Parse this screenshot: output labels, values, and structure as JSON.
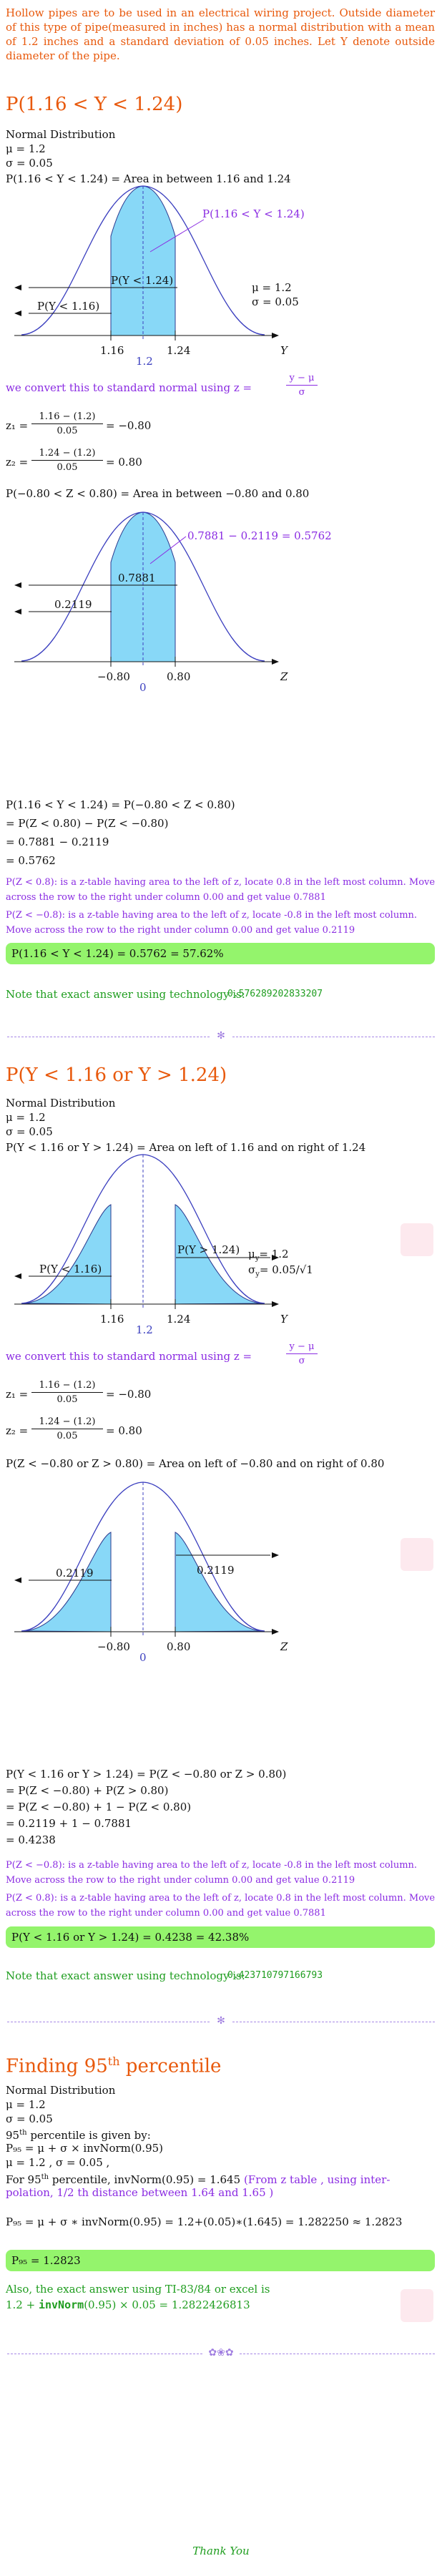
{
  "intro": "Hollow pipes are to be used in an electrical wiring project. Outside diameter of this type of pipe(measured in inches) has a normal distribution with a mean of 1.2 inches and a standard deviation of 0.05 inches. Let Y denote outside diameter of the pipe.",
  "s1": {
    "title": "P(1.16 < Y < 1.24)",
    "lines": [
      "Normal Distribution",
      "μ = 1.2",
      "σ = 0.05",
      "P(1.16 < Y < 1.24) = Area in between 1.16 and 1.24"
    ],
    "fig1": {
      "callout": "P(1.16 < Y < 1.24)",
      "inner": "P(Y < 1.24)",
      "left": "P(Y < 1.16)",
      "mu": "μ = 1.2",
      "sigma": "σ = 0.05",
      "t1": "1.16",
      "t2": "1.24",
      "tmid": "1.2",
      "axis": "Y"
    },
    "convert": "we convert this to standard normal using z =",
    "z_num": "y − μ",
    "z_den": "σ",
    "z1_label": "z₁ =",
    "z1_num": "1.16 − (1.2)",
    "z1_den": "0.05",
    "z1_val": "= −0.80",
    "z2_label": "z₂ =",
    "z2_num": "1.24 − (1.2)",
    "z2_den": "0.05",
    "z2_val": "= 0.80",
    "pz": "P(−0.80 < Z < 0.80) = Area in between −0.80 and 0.80",
    "fig2": {
      "callout": "0.7881 − 0.2119 = 0.5762",
      "inner": "0.7881",
      "left": "0.2119",
      "t1": "−0.80",
      "t2": "0.80",
      "tmid": "0",
      "axis": "Z"
    },
    "calc": [
      "P(1.16 < Y < 1.24) = P(−0.80 < Z < 0.80)",
      "= P(Z < 0.80) − P(Z < −0.80)",
      "= 0.7881 − 0.2119",
      "= 0.5762"
    ],
    "note1": "P(Z < 0.8): is a z-table having area to the left of z, locate 0.8 in the left most column. Move across the row to the right under column 0.00 and get value 0.7881",
    "note2": "P(Z < −0.8): is a z-table having area to the left of z, locate -0.8 in the left most column. Move across the row to the right under column 0.00 and get value 0.2119",
    "answer": "P(1.16 < Y < 1.24) = 0.5762 = 57.62%",
    "tech_label": "Note that exact answer using technology is:",
    "tech_value": "0.576289202833207"
  },
  "s2": {
    "title": "P(Y < 1.16 or Y > 1.24)",
    "lines": [
      "Normal Distribution",
      "μ = 1.2",
      "σ = 0.05",
      "P(Y < 1.16 or Y > 1.24) = Area on left of 1.16 and on right of 1.24"
    ],
    "fig1": {
      "left": "P(Y < 1.16)",
      "right": "P(Y > 1.24)",
      "mu": "μ",
      "mu_sub": "y",
      "mu_val": "= 1.2",
      "sigma": "σ",
      "sigma_sub": "y",
      "sigma_val": "= 0.05/√1",
      "t1": "1.16",
      "t2": "1.24",
      "tmid": "1.2",
      "axis": "Y"
    },
    "convert": "we convert this to standard normal using z =",
    "z_num": "y − μ",
    "z_den": "σ",
    "z1_label": "z₁ =",
    "z1_num": "1.16 − (1.2)",
    "z1_den": "0.05",
    "z1_val": "= −0.80",
    "z2_label": "z₂ =",
    "z2_num": "1.24 − (1.2)",
    "z2_den": "0.05",
    "z2_val": "= 0.80",
    "pz": "P(Z < −0.80 or Z > 0.80) = Area on left of −0.80 and on right of 0.80",
    "fig2": {
      "left": "0.2119",
      "right": "0.2119",
      "t1": "−0.80",
      "t2": "0.80",
      "tmid": "0",
      "axis": "Z"
    },
    "calc": [
      "P(Y < 1.16 or Y > 1.24) = P(Z < −0.80 or Z > 0.80)",
      "= P(Z < −0.80) + P(Z > 0.80)",
      "= P(Z < −0.80) + 1 − P(Z < 0.80)",
      "= 0.2119 + 1 − 0.7881",
      "= 0.4238"
    ],
    "note1": "P(Z < −0.8): is a z-table having area to the left of z, locate -0.8 in the left most column. Move across the row to the right under column 0.00 and get value 0.2119",
    "note2": "P(Z < 0.8): is a z-table having area to the left of z, locate 0.8 in the left most column. Move across the row to the right under column 0.00 and get value 0.7881",
    "answer": "P(Y < 1.16 or Y > 1.24) = 0.4238 = 42.38%",
    "tech_label": "Note that exact answer using technology is:",
    "tech_value": "0.423710797166793"
  },
  "s3": {
    "title_pre": "Finding 95",
    "title_sup": "th",
    "title_post": " percentile",
    "lines": [
      "Normal Distribution",
      "μ = 1.2",
      "σ = 0.05"
    ],
    "given_pre": "95",
    "given_sup": "th",
    "given_post": " percentile is given by:",
    "formula": "P₉₅ = μ + σ × invNorm(0.95)",
    "musig": "μ = 1.2 , σ = 0.05 ,",
    "for_pre": "For 95",
    "for_sup": "th",
    "for_post": " percentile, invNorm(0.95) = 1.645",
    "for_note": "(From z table , using inter-",
    "for_note2": "polation, 1/2 th distance between 1.64 and 1.65 )",
    "final": "P₉₅ = μ + σ ∗ invNorm(0.95) = 1.2+(0.05)∗(1.645) = 1.282250 ≈ 1.2823",
    "answer": "P₉₅ = 1.2823",
    "also": "Also, the exact answer using TI-83/84 or excel is",
    "exact_pre": "1.2 + ",
    "exact_code": "invNorm",
    "exact_post": "(0.95) × 0.05 = 1.2822426813"
  },
  "thanks": "Thank You"
}
